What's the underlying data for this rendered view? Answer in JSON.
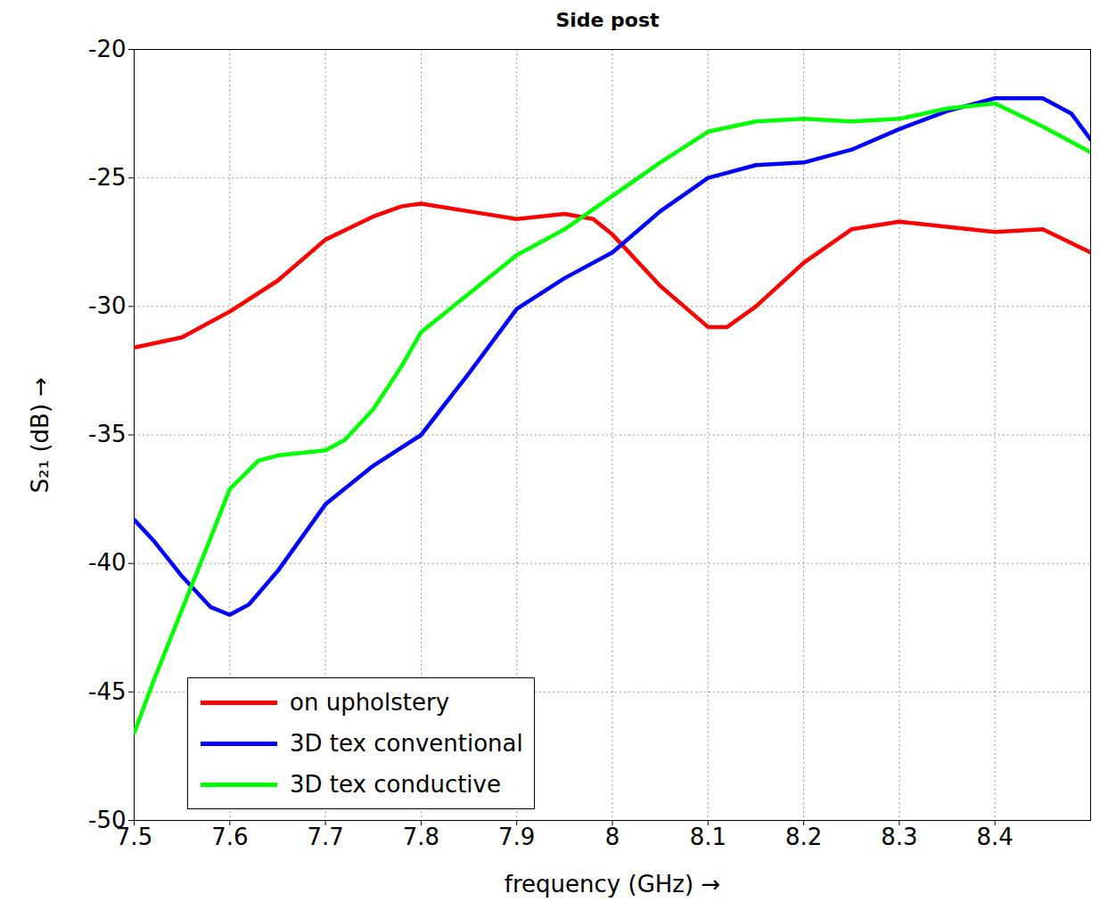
{
  "chart_data": {
    "type": "line",
    "title": "Side post",
    "x_label": "frequency (GHz) →",
    "y_label": "S₂₁ (dB) →",
    "xlim": [
      7.5,
      8.5
    ],
    "xticks": [
      7.5,
      7.6,
      7.7,
      7.8,
      7.9,
      8,
      8.1,
      8.2,
      8.3,
      8.4
    ],
    "ylim": [
      -50,
      -20
    ],
    "yticks": [
      -50,
      -45,
      -40,
      -35,
      -30,
      -25,
      -20
    ],
    "grid": true,
    "legend": "bottom-left",
    "series": [
      {
        "name": "on upholstery",
        "color": "#ff0000",
        "x": [
          7.5,
          7.55,
          7.6,
          7.65,
          7.7,
          7.75,
          7.78,
          7.8,
          7.85,
          7.9,
          7.95,
          7.98,
          8.0,
          8.05,
          8.1,
          8.12,
          8.15,
          8.2,
          8.25,
          8.3,
          8.35,
          8.4,
          8.45,
          8.5
        ],
        "values": [
          -31.6,
          -31.2,
          -30.2,
          -29.0,
          -27.4,
          -26.5,
          -26.1,
          -26.0,
          -26.3,
          -26.6,
          -26.4,
          -26.6,
          -27.2,
          -29.2,
          -30.8,
          -30.8,
          -30.0,
          -28.3,
          -27.0,
          -26.7,
          -26.9,
          -27.1,
          -27.0,
          -27.9
        ]
      },
      {
        "name": "3D tex conventional",
        "color": "#0000ff",
        "x": [
          7.5,
          7.52,
          7.55,
          7.58,
          7.6,
          7.62,
          7.65,
          7.7,
          7.75,
          7.8,
          7.85,
          7.9,
          7.95,
          8.0,
          8.05,
          8.1,
          8.15,
          8.2,
          8.25,
          8.3,
          8.35,
          8.4,
          8.45,
          8.48,
          8.5
        ],
        "values": [
          -38.3,
          -39.1,
          -40.5,
          -41.7,
          -42.0,
          -41.6,
          -40.3,
          -37.7,
          -36.2,
          -35.0,
          -32.6,
          -30.1,
          -28.9,
          -27.9,
          -26.3,
          -25.0,
          -24.5,
          -24.4,
          -23.9,
          -23.1,
          -22.4,
          -21.9,
          -21.9,
          -22.5,
          -23.5
        ]
      },
      {
        "name": "3D tex conductive",
        "color": "#00ff00",
        "x": [
          7.5,
          7.52,
          7.55,
          7.58,
          7.6,
          7.63,
          7.65,
          7.7,
          7.72,
          7.75,
          7.78,
          7.8,
          7.85,
          7.9,
          7.95,
          8.0,
          8.05,
          8.1,
          8.15,
          8.2,
          8.25,
          8.3,
          8.35,
          8.4,
          8.45,
          8.5
        ],
        "values": [
          -46.6,
          -44.6,
          -41.8,
          -39.0,
          -37.1,
          -36.0,
          -35.8,
          -35.6,
          -35.2,
          -34.0,
          -32.3,
          -31.0,
          -29.5,
          -28.0,
          -27.0,
          -25.7,
          -24.4,
          -23.2,
          -22.8,
          -22.7,
          -22.8,
          -22.7,
          -22.3,
          -22.1,
          -23.0,
          -24.0
        ]
      }
    ]
  }
}
